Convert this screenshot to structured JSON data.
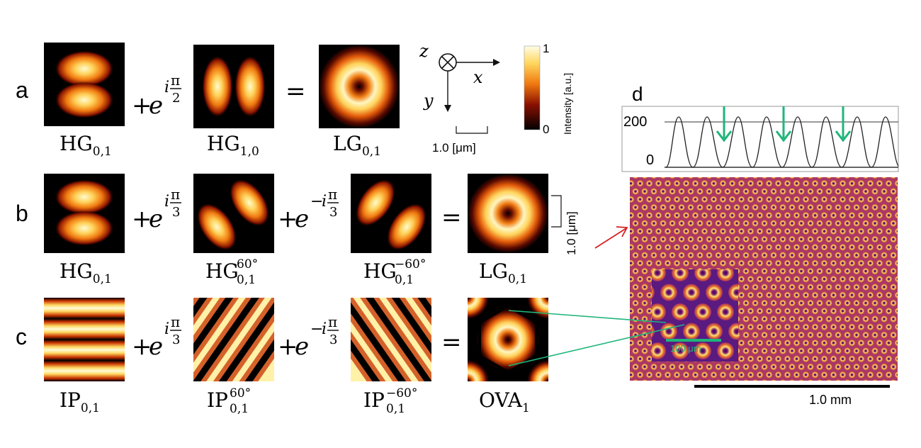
{
  "rows": {
    "a": {
      "label": "a",
      "terms": [
        {
          "base": "HG",
          "sub": "0,1",
          "sup": ""
        },
        {
          "base": "HG",
          "sub": "1,0",
          "sup": ""
        },
        {
          "base": "LG",
          "sub": "0,1",
          "sup": ""
        }
      ],
      "ops": [
        {
          "sign": "+",
          "exp_sign": "",
          "num": "π",
          "den": "2"
        },
        {
          "eq": "="
        }
      ]
    },
    "b": {
      "label": "b",
      "terms": [
        {
          "base": "HG",
          "sub": "0,1",
          "sup": ""
        },
        {
          "base": "HG",
          "sub": "0,1",
          "sup": "60°"
        },
        {
          "base": "HG",
          "sub": "0,1",
          "sup": "−60°"
        },
        {
          "base": "LG",
          "sub": "0,1",
          "sup": ""
        }
      ],
      "ops": [
        {
          "sign": "+",
          "exp_sign": "",
          "num": "π",
          "den": "3"
        },
        {
          "sign": "+",
          "exp_sign": "−",
          "num": "π",
          "den": "3"
        },
        {
          "eq": "="
        }
      ]
    },
    "c": {
      "label": "c",
      "terms": [
        {
          "base": "IP",
          "sub": "0,1",
          "sup": ""
        },
        {
          "base": "IP",
          "sub": "0,1",
          "sup": "60°"
        },
        {
          "base": "IP",
          "sub": "0,1",
          "sup": "−60°"
        },
        {
          "base": "OVA",
          "sub": "1",
          "sup": ""
        }
      ],
      "ops": [
        {
          "sign": "+",
          "exp_sign": "",
          "num": "π",
          "den": "3"
        },
        {
          "sign": "+",
          "exp_sign": "−",
          "num": "π",
          "den": "3"
        },
        {
          "eq": "="
        }
      ]
    }
  },
  "euler": "e",
  "imag": "i",
  "axes": {
    "z": "z",
    "x": "x",
    "y": "y"
  },
  "scale_bar_a": "1.0 [μm]",
  "scale_bar_b": "1.0 [μm]",
  "colorbar": {
    "label": "Intensity [a.u.]",
    "max": "1",
    "min": "0"
  },
  "panel_d": {
    "label": "d",
    "profile_y_ticks": [
      "200",
      "0"
    ],
    "scale_bar": "1.0 mm",
    "inset_scale": "100 μm"
  },
  "colors": {
    "accent_green": "#1fb57a",
    "arrow_red": "#d62020",
    "lattice_bg": "#d16a3a"
  }
}
